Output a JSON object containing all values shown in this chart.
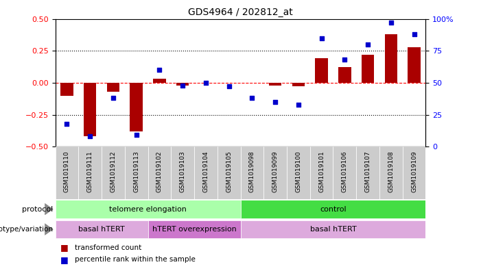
{
  "title": "GDS4964 / 202812_at",
  "samples": [
    "GSM1019110",
    "GSM1019111",
    "GSM1019112",
    "GSM1019113",
    "GSM1019102",
    "GSM1019103",
    "GSM1019104",
    "GSM1019105",
    "GSM1019098",
    "GSM1019099",
    "GSM1019100",
    "GSM1019101",
    "GSM1019106",
    "GSM1019107",
    "GSM1019108",
    "GSM1019109"
  ],
  "red_bars": [
    -0.1,
    -0.42,
    -0.07,
    -0.38,
    0.03,
    -0.02,
    0.0,
    0.0,
    0.0,
    -0.02,
    -0.03,
    0.19,
    0.12,
    0.22,
    0.38,
    0.28
  ],
  "blue_dots": [
    18,
    8,
    38,
    9,
    60,
    48,
    50,
    47,
    38,
    35,
    33,
    85,
    68,
    80,
    97,
    88
  ],
  "ylim_left": [
    -0.5,
    0.5
  ],
  "ylim_right": [
    0,
    100
  ],
  "yticks_left": [
    -0.5,
    -0.25,
    0.0,
    0.25,
    0.5
  ],
  "yticks_right": [
    0,
    25,
    50,
    75,
    100
  ],
  "ytick_labels_right": [
    "0",
    "25",
    "50",
    "75",
    "100%"
  ],
  "bar_color": "#aa0000",
  "dot_color": "#0000cc",
  "protocol_labels": [
    "telomere elongation",
    "control"
  ],
  "protocol_colors": [
    "#aaffaa",
    "#44dd44"
  ],
  "genotype_labels": [
    "basal hTERT",
    "hTERT overexpression",
    "basal hTERT"
  ],
  "genotype_colors": [
    "#ddaadd",
    "#cc77cc",
    "#ddaadd"
  ],
  "tick_bg": "#cccccc",
  "bg_color": "#ffffff"
}
